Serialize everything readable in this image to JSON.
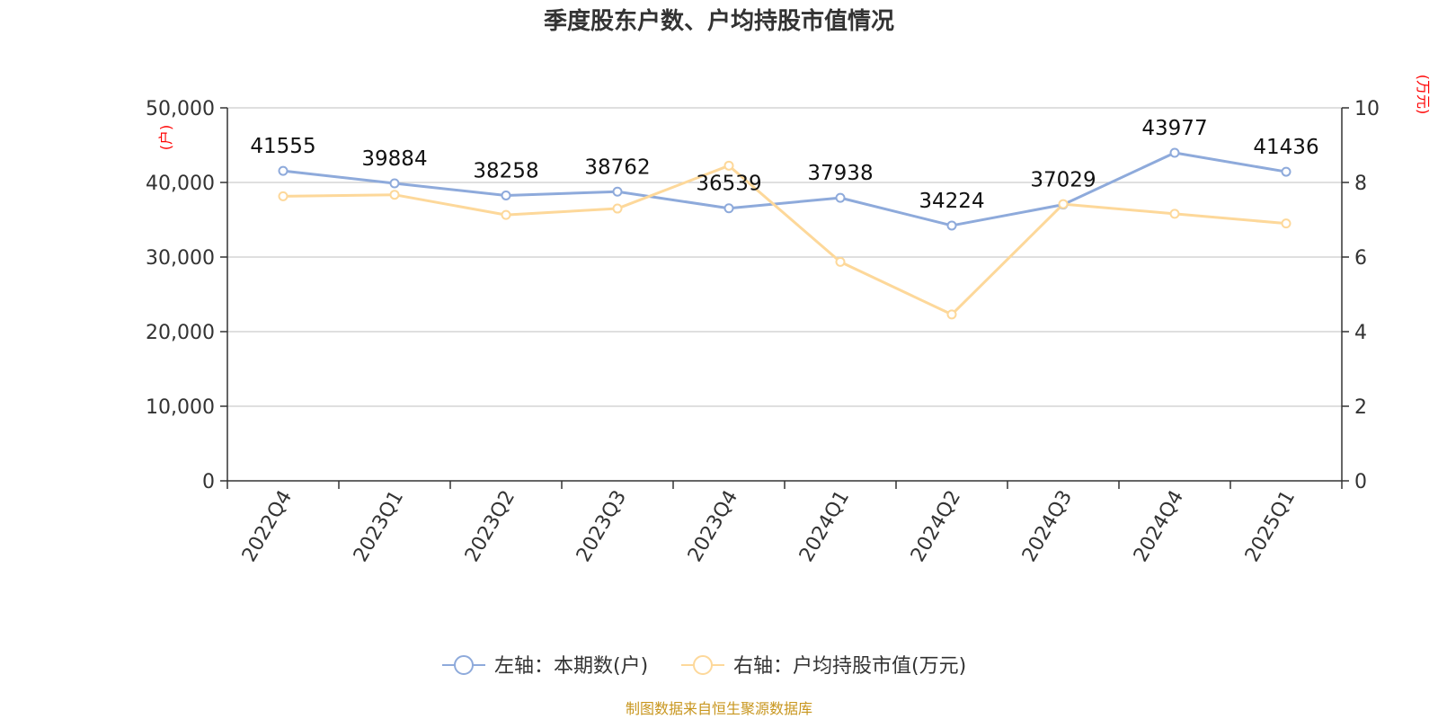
{
  "chart_data": {
    "type": "line",
    "title": "季度股东户数、户均持股市值情况",
    "categories": [
      "2022Q4",
      "2023Q1",
      "2023Q2",
      "2023Q3",
      "2023Q4",
      "2024Q1",
      "2024Q2",
      "2024Q3",
      "2024Q4",
      "2025Q1"
    ],
    "series": [
      {
        "name": "左轴：本期数(户)",
        "axis": "left",
        "color": "#8eaadb",
        "values": [
          41555,
          39884,
          38258,
          38762,
          36539,
          37938,
          34224,
          37029,
          43977,
          41436
        ],
        "labels": [
          "41555",
          "39884",
          "38258",
          "38762",
          "36539",
          "37938",
          "34224",
          "37029",
          "43977",
          "41436"
        ]
      },
      {
        "name": "右轴：户均持股市值(万元)",
        "axis": "right",
        "color": "#fdd89a",
        "values": [
          7.63,
          7.67,
          7.13,
          7.3,
          8.45,
          5.87,
          4.46,
          7.42,
          7.16,
          6.9
        ]
      }
    ],
    "y_left": {
      "unit": "(户)",
      "range": [
        0,
        50000
      ],
      "ticks": [
        0,
        10000,
        20000,
        30000,
        40000,
        50000
      ],
      "tick_labels": [
        "0",
        "10,000",
        "20,000",
        "30,000",
        "40,000",
        "50,000"
      ]
    },
    "y_right": {
      "unit": "(万元)",
      "range": [
        0,
        10
      ],
      "ticks": [
        0,
        2,
        4,
        6,
        8,
        10
      ],
      "tick_labels": [
        "0",
        "2",
        "4",
        "6",
        "8",
        "10"
      ]
    },
    "grid": true,
    "legend_position": "bottom"
  },
  "source": "制图数据来自恒生聚源数据库",
  "colors": {
    "grid": "#cccccc",
    "axis": "#333333",
    "unit": "#ff0000",
    "source": "#c8961e"
  }
}
